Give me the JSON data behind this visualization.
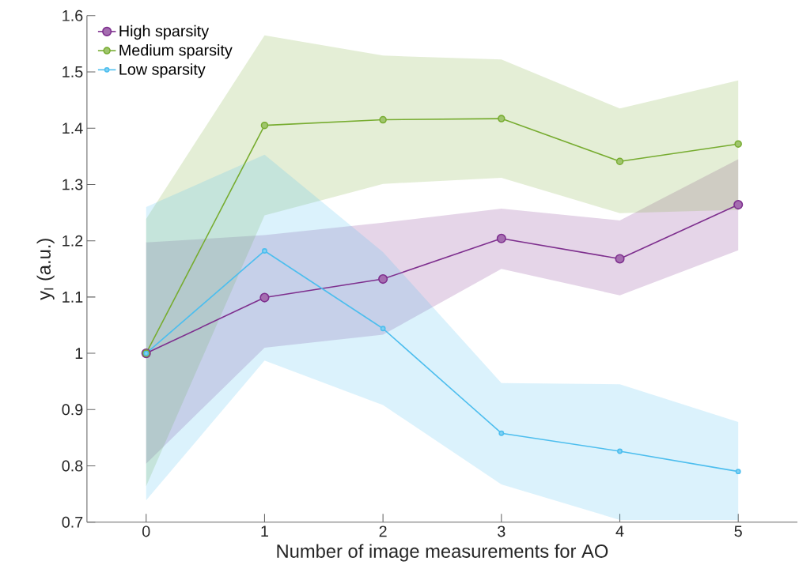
{
  "chart_data": {
    "type": "line",
    "xlabel": "Number of image measurements for AO",
    "ylabel": "y$_{I}$ (a.u.)",
    "x": [
      0,
      1,
      2,
      3,
      4,
      5
    ],
    "series": [
      {
        "name": "High sparsity",
        "color": "#7e2f8e",
        "values": [
          1.0,
          1.099,
          1.132,
          1.204,
          1.168,
          1.264
        ],
        "lower": [
          0.804,
          1.01,
          1.033,
          1.15,
          1.103,
          1.183
        ],
        "upper": [
          1.197,
          1.21,
          1.232,
          1.257,
          1.236,
          1.345
        ]
      },
      {
        "name": "Medium sparsity",
        "color": "#77ac30",
        "values": [
          1.0,
          1.405,
          1.415,
          1.417,
          1.341,
          1.372
        ],
        "lower": [
          0.764,
          1.245,
          1.301,
          1.312,
          1.249,
          1.255
        ],
        "upper": [
          1.239,
          1.565,
          1.529,
          1.522,
          1.435,
          1.485
        ]
      },
      {
        "name": "Low sparsity",
        "color": "#4dbeee",
        "values": [
          1.0,
          1.182,
          1.044,
          0.858,
          0.826,
          0.79
        ],
        "lower": [
          0.739,
          0.987,
          0.908,
          0.767,
          0.704,
          0.704
        ],
        "upper": [
          1.26,
          1.353,
          1.18,
          0.947,
          0.945,
          0.878
        ]
      }
    ],
    "xlim": [
      -0.5,
      5.5
    ],
    "ylim": [
      0.7,
      1.6
    ],
    "xticks": [
      0,
      1,
      2,
      3,
      4,
      5
    ],
    "yticks": [
      0.7,
      0.8,
      0.9,
      1,
      1.1,
      1.2,
      1.3,
      1.4,
      1.5,
      1.6
    ],
    "grid": false,
    "legend": "top left",
    "marker": "circle",
    "line_style": "solid"
  }
}
